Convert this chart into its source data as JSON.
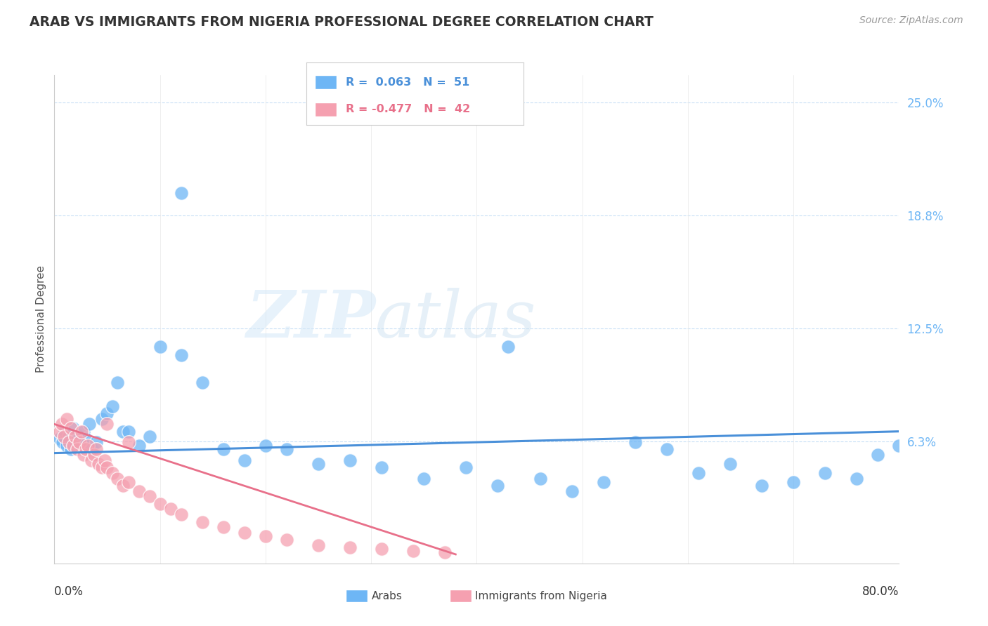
{
  "title": "ARAB VS IMMIGRANTS FROM NIGERIA PROFESSIONAL DEGREE CORRELATION CHART",
  "source_text": "Source: ZipAtlas.com",
  "ylabel": "Professional Degree",
  "ytick_vals": [
    0.0,
    0.0625,
    0.125,
    0.1875,
    0.25
  ],
  "ytick_labels": [
    "",
    "6.3%",
    "12.5%",
    "18.8%",
    "25.0%"
  ],
  "xlim": [
    0.0,
    0.8
  ],
  "ylim": [
    -0.005,
    0.265
  ],
  "arab_color": "#6eb6f5",
  "nigeria_color": "#f5a0b0",
  "arab_line_color": "#4a90d9",
  "nigeria_line_color": "#e8708a",
  "arab_R": 0.063,
  "arab_N": 51,
  "nigeria_R": -0.477,
  "nigeria_N": 42,
  "watermark_zip": "ZIP",
  "watermark_atlas": "atlas",
  "background_color": "#ffffff",
  "grid_color": "#c8dff5",
  "arab_scatter_x": [
    0.005,
    0.008,
    0.01,
    0.012,
    0.014,
    0.016,
    0.018,
    0.02,
    0.022,
    0.025,
    0.028,
    0.03,
    0.033,
    0.036,
    0.04,
    0.045,
    0.05,
    0.055,
    0.06,
    0.065,
    0.07,
    0.08,
    0.09,
    0.1,
    0.12,
    0.14,
    0.16,
    0.18,
    0.2,
    0.22,
    0.25,
    0.28,
    0.31,
    0.35,
    0.39,
    0.42,
    0.46,
    0.49,
    0.52,
    0.55,
    0.58,
    0.61,
    0.64,
    0.67,
    0.7,
    0.73,
    0.76,
    0.78,
    0.8,
    0.12,
    0.43
  ],
  "arab_scatter_y": [
    0.064,
    0.062,
    0.068,
    0.06,
    0.065,
    0.058,
    0.07,
    0.062,
    0.066,
    0.06,
    0.068,
    0.064,
    0.072,
    0.058,
    0.062,
    0.075,
    0.078,
    0.082,
    0.095,
    0.068,
    0.068,
    0.06,
    0.065,
    0.115,
    0.11,
    0.095,
    0.058,
    0.052,
    0.06,
    0.058,
    0.05,
    0.052,
    0.048,
    0.042,
    0.048,
    0.038,
    0.042,
    0.035,
    0.04,
    0.062,
    0.058,
    0.045,
    0.05,
    0.038,
    0.04,
    0.045,
    0.042,
    0.055,
    0.06,
    0.2,
    0.115
  ],
  "nigeria_scatter_x": [
    0.005,
    0.007,
    0.009,
    0.012,
    0.014,
    0.016,
    0.018,
    0.02,
    0.022,
    0.024,
    0.026,
    0.028,
    0.03,
    0.032,
    0.035,
    0.038,
    0.04,
    0.042,
    0.045,
    0.048,
    0.05,
    0.055,
    0.06,
    0.065,
    0.07,
    0.08,
    0.09,
    0.1,
    0.11,
    0.12,
    0.14,
    0.16,
    0.18,
    0.2,
    0.22,
    0.25,
    0.28,
    0.31,
    0.34,
    0.37,
    0.07,
    0.05
  ],
  "nigeria_scatter_y": [
    0.068,
    0.072,
    0.065,
    0.075,
    0.062,
    0.07,
    0.06,
    0.065,
    0.058,
    0.062,
    0.068,
    0.055,
    0.058,
    0.06,
    0.052,
    0.055,
    0.058,
    0.05,
    0.048,
    0.052,
    0.048,
    0.045,
    0.042,
    0.038,
    0.04,
    0.035,
    0.032,
    0.028,
    0.025,
    0.022,
    0.018,
    0.015,
    0.012,
    0.01,
    0.008,
    0.005,
    0.004,
    0.003,
    0.002,
    0.001,
    0.062,
    0.072
  ],
  "arab_trend_x": [
    0.0,
    0.8
  ],
  "arab_trend_y_start": 0.056,
  "arab_trend_y_end": 0.068,
  "nigeria_trend_x": [
    0.0,
    0.38
  ],
  "nigeria_trend_y_start": 0.072,
  "nigeria_trend_y_end": 0.0
}
